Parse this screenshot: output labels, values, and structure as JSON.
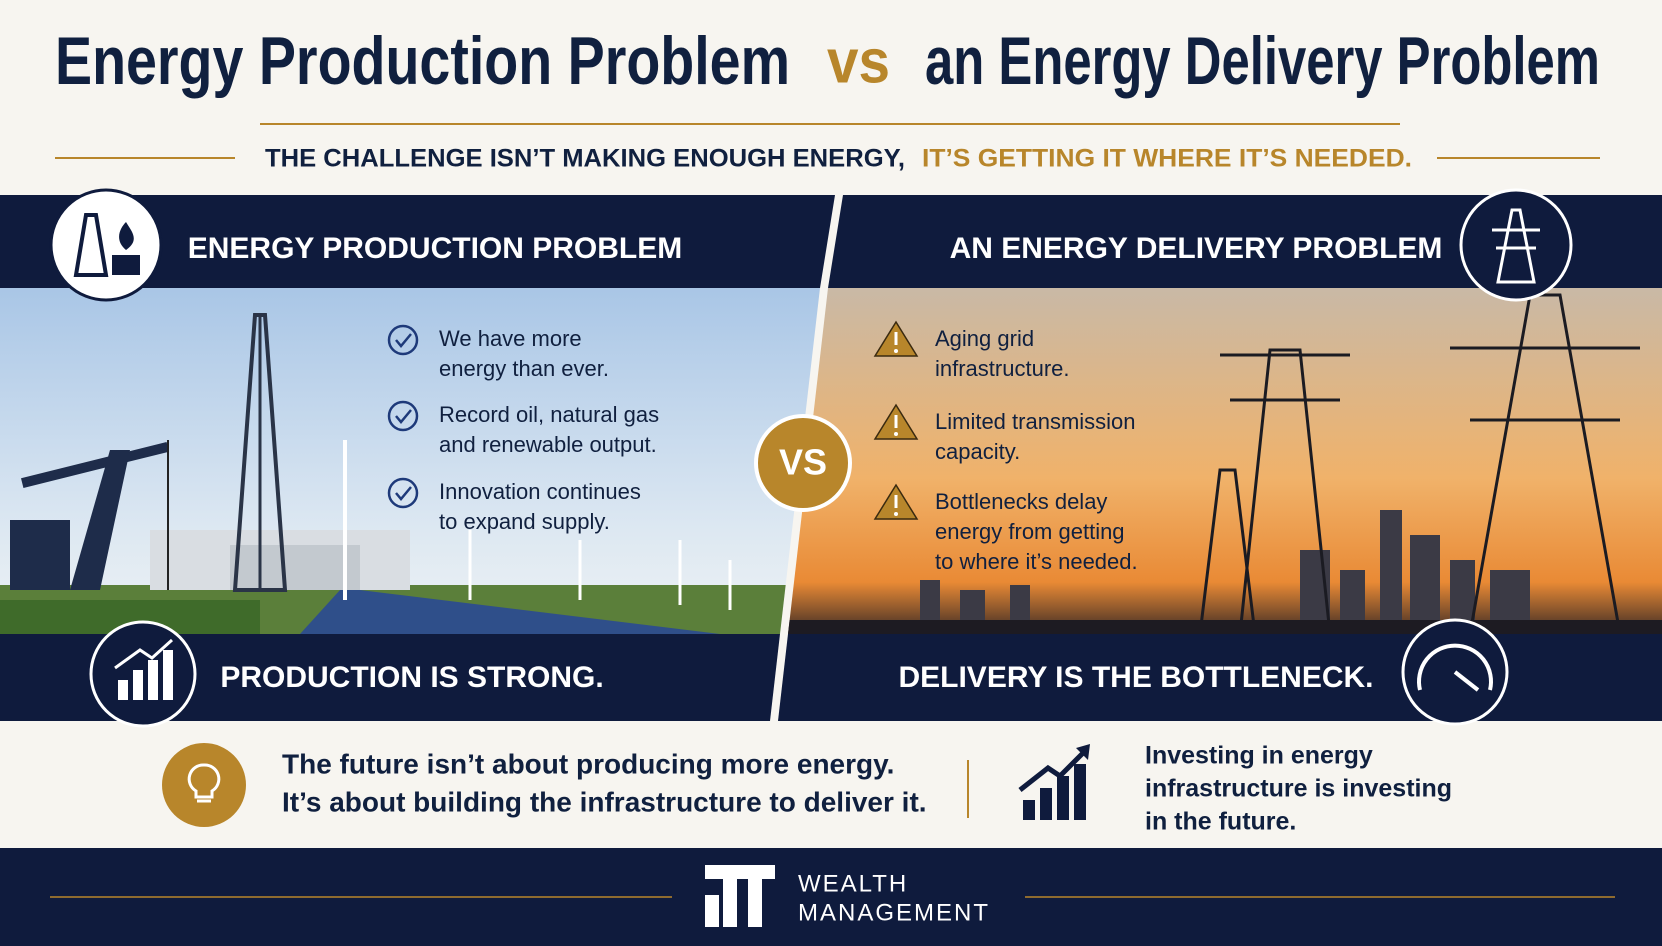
{
  "title": {
    "left": "Energy Production Problem",
    "vs": "vs",
    "right": "an Energy Delivery Problem"
  },
  "subtitle": {
    "dark": "THE CHALLENGE ISN’T MAKING ENOUGH ENERGY,",
    "gold": "IT’S GETTING IT WHERE IT’S NEEDED."
  },
  "left_panel": {
    "heading": "ENERGY PRODUCTION PROBLEM",
    "bullets": [
      [
        "We have more",
        "energy than ever."
      ],
      [
        "Record oil, natural gas",
        "and renewable output."
      ],
      [
        "Innovation continues",
        "to expand supply."
      ]
    ],
    "conclusion": "PRODUCTION IS STRONG."
  },
  "vs_badge": "VS",
  "right_panel": {
    "heading": "AN ENERGY DELIVERY PROBLEM",
    "bullets": [
      [
        "Aging grid",
        "infrastructure."
      ],
      [
        "Limited transmission",
        "capacity."
      ],
      [
        "Bottlenecks delay",
        "energy from getting",
        "to where it’s needed."
      ]
    ],
    "conclusion": "DELIVERY IS THE BOTTLENECK."
  },
  "takeaway": {
    "main": [
      "The future isn’t about producing more energy.",
      "It’s about building the infrastructure to deliver it."
    ],
    "side": [
      "Investing in energy",
      "infrastructure is investing",
      "in the future."
    ]
  },
  "footer": {
    "brand": [
      "WEALTH",
      "MANAGEMENT"
    ]
  }
}
